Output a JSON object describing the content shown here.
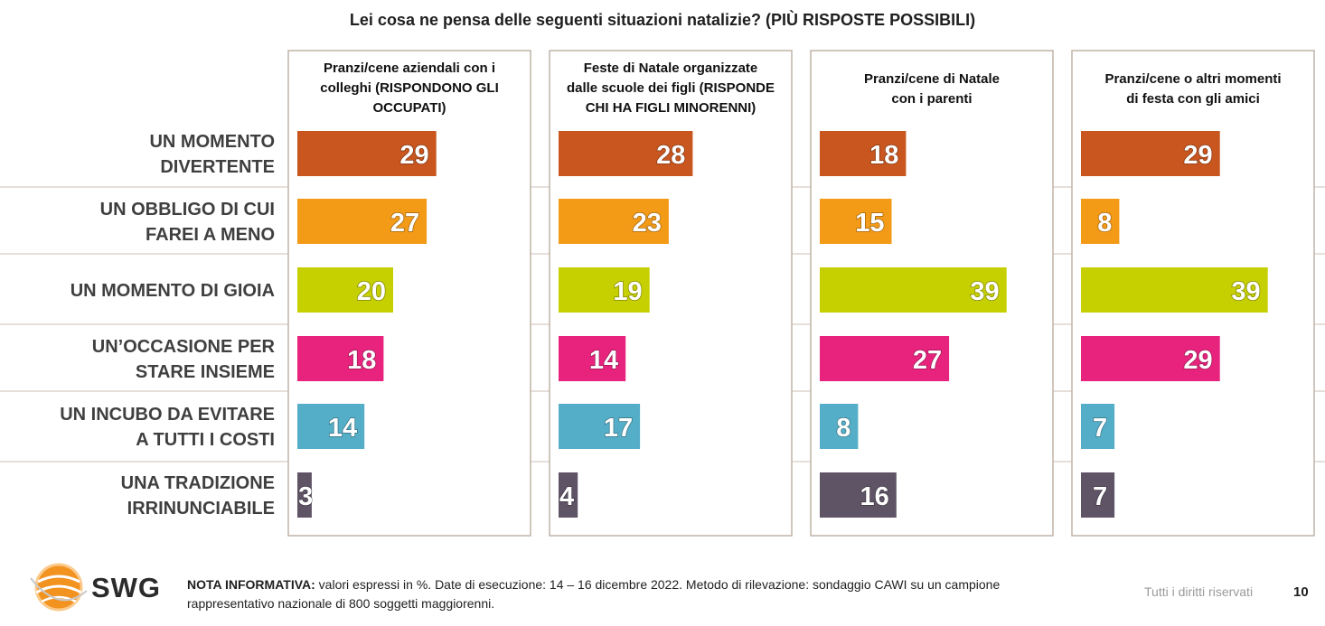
{
  "title": "Lei cosa ne pensa delle seguenti situazioni natalizie? (PIÙ RISPOSTE POSSIBILI)",
  "chart_data": {
    "type": "bar",
    "orientation": "horizontal",
    "unit": "%",
    "categories": [
      [
        "UN MOMENTO",
        "DIVERTENTE"
      ],
      [
        "UN OBBLIGO DI CUI",
        "FAREI A MENO"
      ],
      [
        "UN MOMENTO DI GIOIA"
      ],
      [
        "UN’OCCASIONE PER",
        "STARE INSIEME"
      ],
      [
        "UN INCUBO DA EVITARE",
        "A TUTTI I COSTI"
      ],
      [
        "UNA TRADIZIONE",
        "IRRINUNCIABILE"
      ]
    ],
    "category_colors": [
      "#c8561e",
      "#f39a17",
      "#c6cf00",
      "#e8237d",
      "#55aec7",
      "#5f5466"
    ],
    "series": [
      {
        "name": [
          "Pranzi/cene aziendali con i",
          "colleghi (RISPONDONO GLI",
          "OCCUPATI)"
        ],
        "values": [
          29,
          27,
          20,
          18,
          14,
          3
        ]
      },
      {
        "name": [
          "Feste di Natale organizzate",
          "dalle scuole dei figli (RISPONDE",
          "CHI HA FIGLI MINORENNI)"
        ],
        "values": [
          28,
          23,
          19,
          14,
          17,
          4
        ]
      },
      {
        "name": [
          "Pranzi/cene di Natale",
          "con i parenti"
        ],
        "values": [
          18,
          15,
          39,
          27,
          8,
          16
        ]
      },
      {
        "name": [
          "Pranzi/cene o altri momenti",
          "di festa con gli amici"
        ],
        "values": [
          29,
          8,
          39,
          29,
          7,
          7
        ]
      }
    ]
  },
  "footer": {
    "logo_text": "SWG",
    "note_label": "NOTA INFORMATIVA:",
    "note_line1": " valori espressi in %. Date di esecuzione: 14 – 16 dicembre 2022. Metodo di rilevazione: sondaggio CAWI su un campione",
    "note_line2": "rappresentativo nazionale di 800 soggetti maggiorenni.",
    "rights": "Tutti i diritti riservati",
    "page_number": "10"
  }
}
